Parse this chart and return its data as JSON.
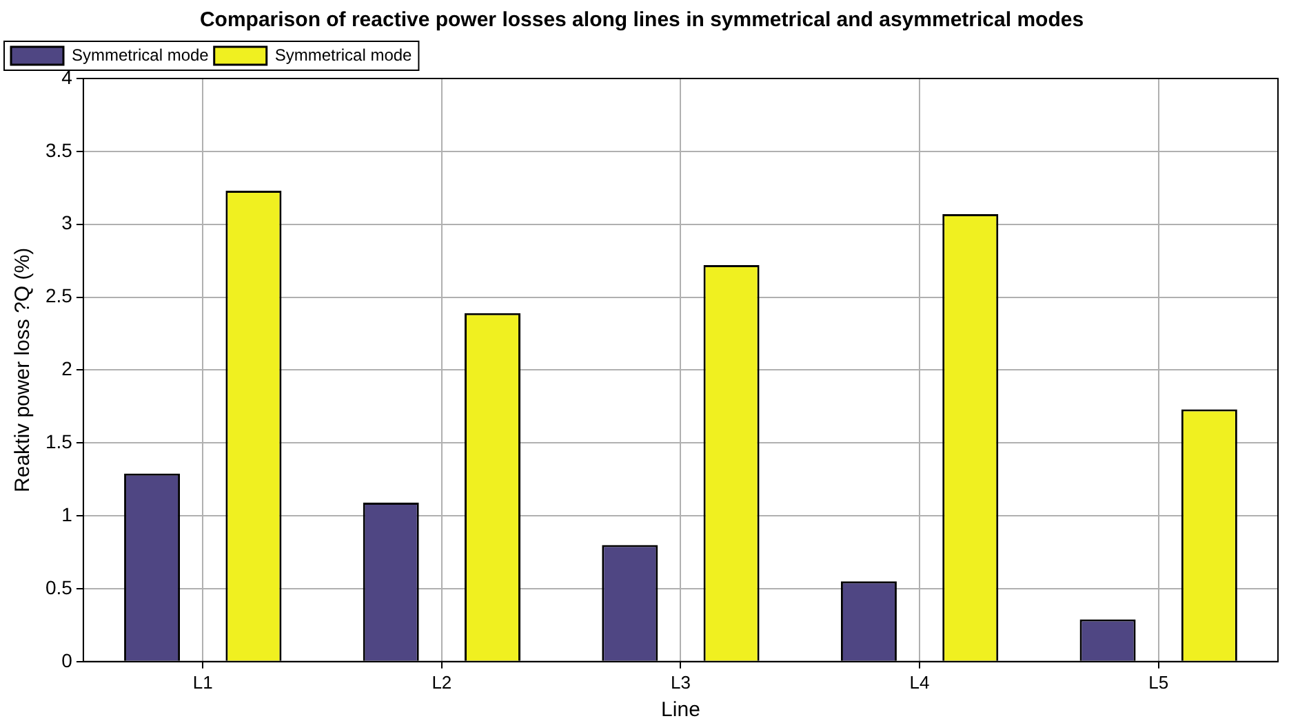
{
  "chart_data": {
    "type": "bar",
    "title": "Comparison of reactive power losses along lines in symmetrical and asymmetrical modes",
    "xlabel": "Line",
    "ylabel": "Reaktiv power loss ?Q (%)",
    "categories": [
      "L1",
      "L2",
      "L3",
      "L4",
      "L5"
    ],
    "series": [
      {
        "name": "Symmetrical mode",
        "color": "#4f4683",
        "values": [
          1.29,
          1.09,
          0.8,
          0.55,
          0.29
        ]
      },
      {
        "name": "Symmetrical mode",
        "color": "#f0f020",
        "values": [
          3.23,
          2.39,
          2.72,
          3.07,
          1.73
        ]
      }
    ],
    "ylim": [
      0,
      4
    ],
    "yticks": [
      0,
      0.5,
      1,
      1.5,
      2,
      2.5,
      3,
      3.5,
      4
    ],
    "grid": true,
    "legend": "top left"
  }
}
